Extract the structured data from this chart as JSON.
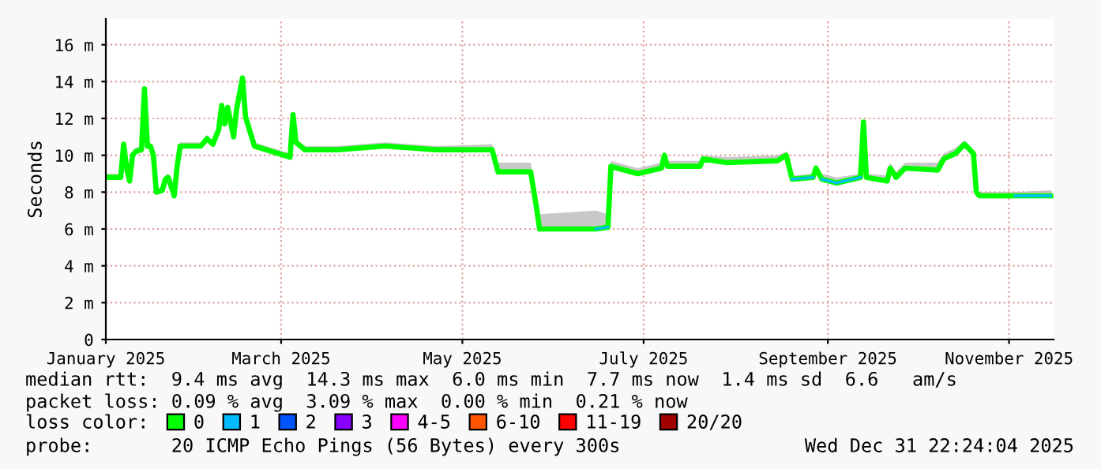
{
  "chart_data": {
    "type": "line",
    "ylabel": "Seconds",
    "x": [
      "2025-01-01",
      "2025-01-06",
      "2025-01-07",
      "2025-01-08",
      "2025-01-09",
      "2025-01-10",
      "2025-01-11",
      "2025-01-13",
      "2025-01-14",
      "2025-01-15",
      "2025-01-16",
      "2025-01-17",
      "2025-01-18",
      "2025-01-20",
      "2025-01-21",
      "2025-01-22",
      "2025-01-24",
      "2025-01-25",
      "2025-01-26",
      "2025-02-02",
      "2025-02-04",
      "2025-02-06",
      "2025-02-08",
      "2025-02-09",
      "2025-02-10",
      "2025-02-11",
      "2025-02-13",
      "2025-02-14",
      "2025-02-16",
      "2025-02-17",
      "2025-02-20",
      "2025-02-26",
      "2025-03-04",
      "2025-03-05",
      "2025-03-06",
      "2025-03-09",
      "2025-03-20",
      "2025-04-05",
      "2025-04-22",
      "2025-05-11",
      "2025-05-13",
      "2025-05-24",
      "2025-05-26",
      "2025-05-27",
      "2025-06-15",
      "2025-06-19",
      "2025-06-20",
      "2025-06-29",
      "2025-07-07",
      "2025-07-08",
      "2025-07-09",
      "2025-07-20",
      "2025-07-21",
      "2025-07-29",
      "2025-08-15",
      "2025-08-18",
      "2025-08-20",
      "2025-08-27",
      "2025-08-28",
      "2025-08-30",
      "2025-09-04",
      "2025-09-12",
      "2025-09-13",
      "2025-09-14",
      "2025-09-21",
      "2025-09-22",
      "2025-09-24",
      "2025-09-27",
      "2025-10-08",
      "2025-10-10",
      "2025-10-14",
      "2025-10-17",
      "2025-10-20",
      "2025-10-21",
      "2025-10-22",
      "2025-11-03",
      "2025-11-15"
    ],
    "series": [
      {
        "name": "0",
        "color": "#00ff00",
        "values": [
          8.8,
          8.8,
          10.6,
          9.3,
          8.6,
          10.0,
          10.2,
          10.3,
          13.6,
          10.5,
          10.5,
          10.0,
          8.0,
          8.1,
          8.7,
          8.8,
          7.8,
          9.4,
          10.5,
          10.5,
          10.9,
          10.6,
          11.4,
          12.7,
          11.7,
          12.6,
          11.0,
          12.5,
          14.2,
          12.1,
          10.5,
          10.2,
          9.9,
          12.2,
          10.7,
          10.3,
          10.3,
          10.5,
          10.3,
          10.3,
          9.1,
          9.1,
          7.1,
          6.0,
          6.0,
          6.1,
          9.4,
          9.0,
          9.3,
          10.0,
          9.4,
          9.4,
          9.8,
          9.6,
          9.7,
          10.0,
          8.7,
          8.8,
          9.3,
          8.7,
          8.5,
          8.8,
          11.8,
          8.8,
          8.6,
          9.3,
          8.8,
          9.3,
          9.2,
          9.8,
          10.1,
          10.6,
          10.1,
          8.0,
          7.8,
          7.8,
          7.8
        ],
        "lower": [
          8.8,
          8.8,
          10.6,
          9.3,
          8.6,
          10.0,
          10.2,
          10.3,
          13.6,
          10.5,
          10.5,
          10.0,
          8.0,
          8.1,
          8.7,
          8.8,
          7.8,
          9.4,
          10.5,
          10.5,
          10.9,
          10.6,
          11.4,
          12.7,
          11.7,
          12.6,
          11.0,
          12.5,
          14.2,
          12.1,
          10.5,
          10.2,
          9.9,
          12.2,
          10.7,
          10.3,
          10.3,
          10.5,
          10.3,
          10.3,
          9.1,
          9.1,
          7.1,
          6.0,
          6.0,
          6.1,
          9.4,
          9.0,
          9.3,
          10.0,
          9.4,
          9.4,
          9.8,
          9.6,
          9.7,
          10.0,
          8.7,
          8.8,
          9.3,
          8.7,
          8.5,
          8.8,
          11.8,
          8.8,
          8.6,
          9.3,
          8.8,
          9.3,
          9.2,
          9.8,
          10.1,
          10.6,
          10.1,
          8.0,
          7.8,
          7.8,
          7.8
        ],
        "upper": [
          9.0,
          9.0,
          10.8,
          9.5,
          8.8,
          10.2,
          10.4,
          10.5,
          13.8,
          10.7,
          10.7,
          10.2,
          8.2,
          8.3,
          8.9,
          9.0,
          8.0,
          9.6,
          10.7,
          10.7,
          11.1,
          10.8,
          11.6,
          12.9,
          11.9,
          12.8,
          11.2,
          12.7,
          14.5,
          12.3,
          10.7,
          10.4,
          10.1,
          12.4,
          10.9,
          10.5,
          10.5,
          10.7,
          10.5,
          10.6,
          9.6,
          9.6,
          7.5,
          6.8,
          7.0,
          6.8,
          9.7,
          9.3,
          9.6,
          10.2,
          9.7,
          9.7,
          10.0,
          9.9,
          10.0,
          10.2,
          8.9,
          9.0,
          9.5,
          9.0,
          8.8,
          9.0,
          12.0,
          9.0,
          8.9,
          9.6,
          9.1,
          9.6,
          9.6,
          10.1,
          10.4,
          10.8,
          10.3,
          8.2,
          8.0,
          8.0,
          8.1
        ]
      },
      {
        "name": "1",
        "color": "#00bbff",
        "values": [
          null,
          null,
          null,
          null,
          null,
          null,
          null,
          null,
          null,
          null,
          null,
          null,
          null,
          null,
          null,
          null,
          null,
          null,
          null,
          null,
          null,
          null,
          null,
          null,
          null,
          null,
          null,
          null,
          null,
          null,
          null,
          null,
          null,
          null,
          null,
          null,
          null,
          null,
          null,
          null,
          null,
          null,
          null,
          null,
          6.0,
          6.1,
          null,
          null,
          null,
          null,
          null,
          null,
          null,
          null,
          null,
          null,
          8.7,
          8.8,
          null,
          8.7,
          8.5,
          8.8,
          null,
          null,
          null,
          null,
          null,
          null,
          null,
          null,
          null,
          null,
          null,
          null,
          null,
          7.8,
          7.8
        ]
      },
      {
        "name": "2",
        "color": "#0055ff",
        "values": [
          null,
          null,
          null,
          null,
          null,
          null,
          null,
          null,
          null,
          null,
          null,
          null,
          null,
          null,
          null,
          null,
          null,
          null,
          null,
          null,
          null,
          null,
          null,
          null,
          null,
          null,
          null,
          null,
          null,
          null,
          null,
          null,
          null,
          null,
          null,
          null,
          null,
          null,
          null,
          null,
          null,
          null,
          null,
          null,
          null,
          null,
          null,
          null,
          null,
          null,
          null,
          null,
          null,
          null,
          null,
          null,
          null,
          null,
          null,
          null,
          null,
          null,
          null,
          null,
          null,
          null,
          null,
          null,
          null,
          null,
          null,
          null,
          null,
          null,
          null,
          null,
          null
        ]
      },
      {
        "name": "3",
        "color": "#8800ff",
        "values": [
          null,
          null,
          null,
          null,
          null,
          null,
          null,
          null,
          null,
          null,
          null,
          null,
          null,
          null,
          null,
          null,
          null,
          null,
          null,
          null,
          null,
          null,
          null,
          null,
          null,
          null,
          null,
          null,
          null,
          null,
          null,
          null,
          null,
          null,
          null,
          null,
          null,
          null,
          null,
          null,
          null,
          null,
          null,
          null,
          null,
          null,
          null,
          null,
          null,
          null,
          null,
          null,
          null,
          null,
          null,
          null,
          null,
          null,
          null,
          null,
          null,
          null,
          null,
          null,
          null,
          null,
          null,
          null,
          null,
          null,
          null,
          null,
          null,
          null,
          null,
          null,
          null
        ]
      },
      {
        "name": "4-5",
        "color": "#ff00ff",
        "values": [
          null,
          null,
          null,
          null,
          null,
          null,
          null,
          null,
          null,
          null,
          null,
          null,
          null,
          null,
          null,
          null,
          null,
          null,
          null,
          null,
          null,
          null,
          null,
          null,
          null,
          null,
          null,
          null,
          null,
          null,
          null,
          null,
          null,
          null,
          null,
          null,
          null,
          null,
          null,
          null,
          null,
          null,
          null,
          null,
          null,
          null,
          null,
          null,
          null,
          null,
          null,
          null,
          null,
          null,
          null,
          null,
          null,
          null,
          null,
          null,
          null,
          null,
          null,
          null,
          null,
          null,
          null,
          null,
          null,
          null,
          null,
          null,
          null,
          null,
          null,
          null,
          null
        ]
      },
      {
        "name": "6-10",
        "color": "#ff5500",
        "values": [
          null,
          null,
          null,
          null,
          null,
          null,
          null,
          null,
          null,
          null,
          null,
          null,
          null,
          null,
          null,
          null,
          null,
          null,
          null,
          null,
          null,
          null,
          null,
          null,
          null,
          null,
          null,
          null,
          null,
          null,
          null,
          null,
          null,
          null,
          null,
          null,
          null,
          null,
          null,
          null,
          null,
          null,
          null,
          null,
          null,
          null,
          null,
          null,
          null,
          null,
          null,
          null,
          null,
          null,
          null,
          null,
          null,
          null,
          null,
          null,
          null,
          null,
          null,
          null,
          null,
          null,
          null,
          null,
          null,
          null,
          null,
          null,
          null,
          null,
          null,
          null,
          null
        ]
      },
      {
        "name": "11-19",
        "color": "#ff0000",
        "values": [
          null,
          null,
          null,
          null,
          null,
          null,
          null,
          null,
          null,
          null,
          null,
          null,
          null,
          null,
          null,
          null,
          null,
          null,
          null,
          null,
          null,
          null,
          null,
          null,
          null,
          null,
          null,
          null,
          null,
          null,
          null,
          null,
          null,
          null,
          null,
          null,
          null,
          null,
          null,
          null,
          null,
          null,
          null,
          null,
          null,
          null,
          null,
          null,
          null,
          null,
          null,
          null,
          null,
          null,
          null,
          null,
          null,
          null,
          null,
          null,
          null,
          null,
          null,
          null,
          null,
          null,
          null,
          null,
          null,
          null,
          null,
          null,
          null,
          null,
          null,
          null,
          null
        ]
      },
      {
        "name": "20/20",
        "color": "#a10000",
        "values": [
          null,
          null,
          null,
          null,
          null,
          null,
          null,
          null,
          null,
          null,
          null,
          null,
          null,
          null,
          null,
          null,
          null,
          null,
          null,
          null,
          null,
          null,
          null,
          null,
          null,
          null,
          null,
          null,
          null,
          null,
          null,
          null,
          null,
          null,
          null,
          null,
          null,
          null,
          null,
          null,
          null,
          null,
          null,
          null,
          null,
          null,
          null,
          null,
          null,
          null,
          null,
          null,
          null,
          null,
          null,
          null,
          null,
          null,
          null,
          null,
          null,
          null,
          null,
          null,
          null,
          null,
          null,
          null,
          null,
          null,
          null,
          null,
          null,
          null,
          null,
          null,
          null
        ]
      }
    ],
    "xlim": [
      "2025-01-01",
      "2025-11-16"
    ],
    "xticks": [
      {
        "value": "2025-01-01",
        "label": "January 2025"
      },
      {
        "value": "2025-03-01",
        "label": "March 2025"
      },
      {
        "value": "2025-05-01",
        "label": "May 2025"
      },
      {
        "value": "2025-07-01",
        "label": "July 2025"
      },
      {
        "value": "2025-09-01",
        "label": "September 2025"
      },
      {
        "value": "2025-11-01",
        "label": "November 2025"
      }
    ],
    "ylim": [
      0,
      17.4
    ],
    "yticks": [
      0,
      {
        "value": 2,
        "label": "2 m"
      },
      {
        "value": 4,
        "label": "4 m"
      },
      {
        "value": 6,
        "label": "6 m"
      },
      {
        "value": 8,
        "label": "8 m"
      },
      {
        "value": 10,
        "label": "10 m"
      },
      {
        "value": 12,
        "label": "12 m"
      },
      {
        "value": 14,
        "label": "14 m"
      },
      {
        "value": 16,
        "label": "16 m"
      }
    ],
    "grid": true,
    "legend": "bottom",
    "legend_title": "loss color:",
    "line_style": "solid",
    "annotations": [
      "median rtt:  9.4 ms avg  14.3 ms max  6.0 ms min  7.7 ms now  1.4 ms sd  6.6   am/s",
      "packet loss: 0.09 % avg  3.09 % max  0.00 % min  0.21 % now",
      "probe:       20 ICMP Echo Pings (56 Bytes) every 300s",
      "Wed Dec 31 22:24:04 2025"
    ]
  }
}
